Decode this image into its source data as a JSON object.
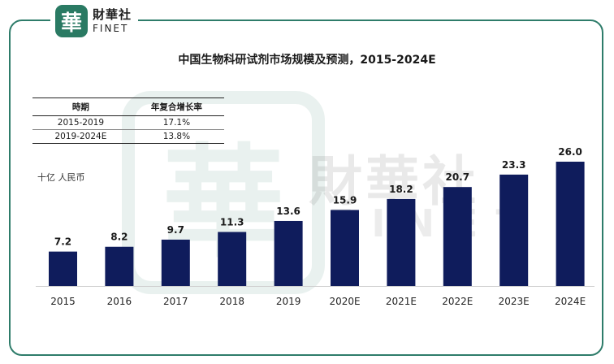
{
  "brand": {
    "seal_char": "華",
    "name_cn": "財華社",
    "name_en": "FINET"
  },
  "colors": {
    "bar": "#0f1c5c",
    "frame": "#2e7c6a"
  },
  "cagr_table": {
    "headers": [
      "時期",
      "年复合增长率"
    ],
    "rows": [
      [
        "2015-2019",
        "17.1%"
      ],
      [
        "2019-2024E",
        "13.8%"
      ]
    ]
  },
  "chart_data": {
    "type": "bar",
    "title": "中国生物科研试剂市场规模及预测，2015-2024E",
    "unit": "十亿 人民币",
    "categories": [
      "2015",
      "2016",
      "2017",
      "2018",
      "2019",
      "2020E",
      "2021E",
      "2022E",
      "2023E",
      "2024E"
    ],
    "values": [
      7.2,
      8.2,
      9.7,
      11.3,
      13.6,
      15.9,
      18.2,
      20.7,
      23.3,
      26.0
    ],
    "value_labels": [
      "7.2",
      "8.2",
      "9.7",
      "11.3",
      "13.6",
      "15.9",
      "18.2",
      "20.7",
      "23.3",
      "26.0"
    ],
    "ylim": [
      0,
      26.0
    ],
    "grid": false,
    "legend": "none"
  }
}
